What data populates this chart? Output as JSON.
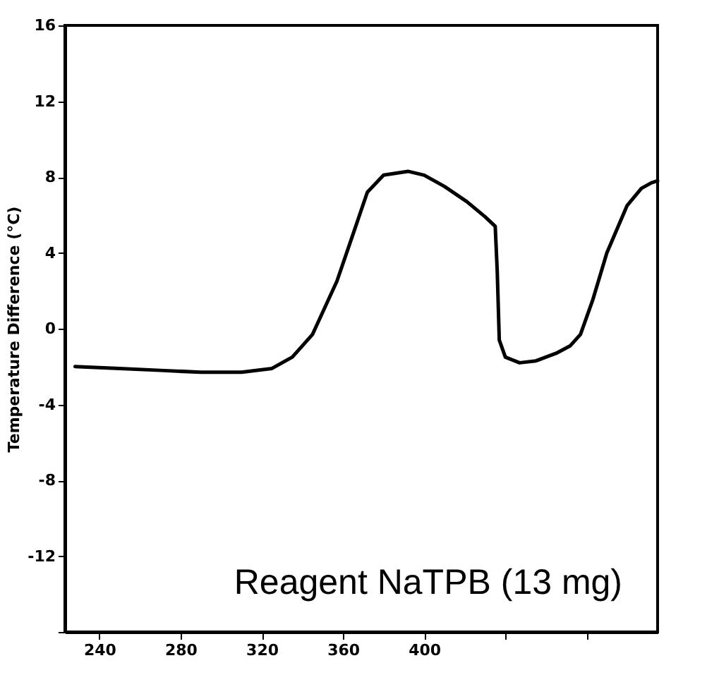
{
  "chart_data": {
    "type": "line",
    "ylabel": "Temperature Difference (°C)",
    "annotations": [
      "Reagent NaTPB (13 mg)"
    ],
    "x": [
      228,
      250,
      270,
      290,
      310,
      325,
      335,
      345,
      357,
      365,
      372,
      380,
      392,
      400,
      410,
      421,
      430,
      435,
      436,
      437,
      440,
      447,
      455,
      465,
      472,
      477,
      483,
      490,
      500,
      507,
      512,
      515
    ],
    "series": [
      {
        "color": "#000000",
        "values": [
          -2,
          -2.1,
          -2.2,
          -2.3,
          -2.3,
          -2.1,
          -1.5,
          -0.3,
          2.5,
          5,
          7.2,
          8.1,
          8.3,
          8.1,
          7.5,
          6.7,
          5.9,
          5.4,
          3,
          -0.6,
          -1.5,
          -1.8,
          -1.7,
          -1.3,
          -0.9,
          -0.3,
          1.5,
          4,
          6.5,
          7.4,
          7.7,
          7.8
        ]
      }
    ],
    "xlim": [
      223,
      515
    ],
    "xticks": [
      240,
      280,
      320,
      360,
      400,
      {
        "value": 440,
        "label": null
      },
      {
        "value": 480,
        "label": null
      }
    ],
    "ylim": [
      -16,
      16
    ],
    "yticks": [
      {
        "value": -16,
        "label": null
      },
      -12,
      -8,
      -4,
      0,
      4,
      8,
      12,
      16
    ],
    "marker": "none",
    "line_style": "solid"
  }
}
